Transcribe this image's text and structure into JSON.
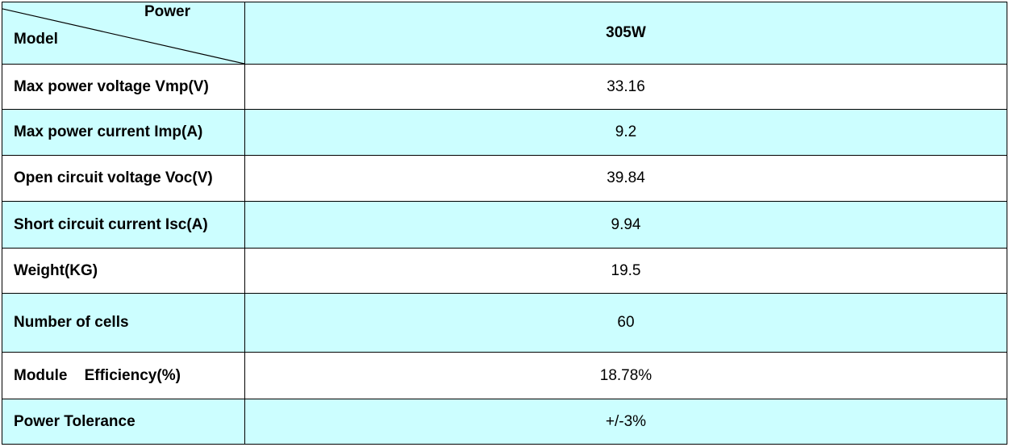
{
  "table": {
    "header": {
      "corner_top": "Power",
      "corner_bottom": "Model",
      "model_value": "305W"
    },
    "rows": [
      {
        "label": "Max power voltage Vmp(V)",
        "value": "33.16"
      },
      {
        "label": "Max power current Imp(A)",
        "value": "9.2"
      },
      {
        "label": "Open circuit voltage Voc(V)",
        "value": "39.84"
      },
      {
        "label": "Short circuit current Isc(A)",
        "value": "9.94"
      },
      {
        "label": "Weight(KG)",
        "value": "19.5"
      },
      {
        "label": "Number of cells",
        "value": "60"
      },
      {
        "label": "Module    Efficiency(%)",
        "value": "18.78%"
      },
      {
        "label": "Power Tolerance",
        "value": "+/-3%"
      }
    ]
  },
  "colors": {
    "row_cyan": "#ccfeff",
    "row_white": "#ffffff",
    "border": "#000000"
  }
}
